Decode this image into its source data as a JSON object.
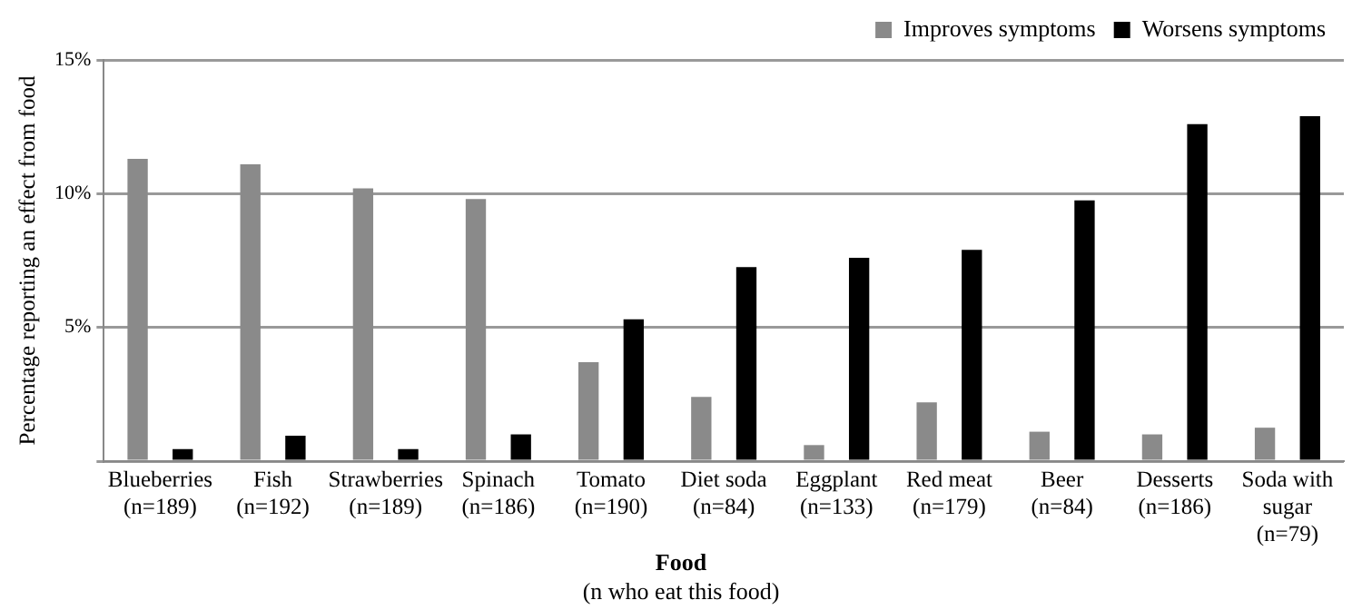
{
  "chart_data": {
    "type": "bar",
    "ylabel": "Percentage reporting an effect from food",
    "xlabel": "Food",
    "annotations": [
      "(n who eat this food)"
    ],
    "categories": [
      "Blueberries\n(n=189)",
      "Fish\n(n=192)",
      "Strawberries\n(n=189)",
      "Spinach\n(n=186)",
      "Tomato\n(n=190)",
      "Diet soda\n(n=84)",
      "Eggplant\n(n=133)",
      "Red meat\n(n=179)",
      "Beer\n(n=84)",
      "Desserts\n(n=186)",
      "Soda with\nsugar\n(n=79)"
    ],
    "series": [
      {
        "name": "Improves symptoms",
        "color": "#8a8a8a",
        "values": [
          11.3,
          11.1,
          10.2,
          9.8,
          3.7,
          2.4,
          0.6,
          2.2,
          1.1,
          1.0,
          1.25
        ]
      },
      {
        "name": "Worsens symptoms",
        "color": "#000000",
        "values": [
          0.45,
          0.95,
          0.45,
          1.0,
          5.3,
          7.25,
          7.6,
          7.9,
          9.75,
          12.6,
          12.9
        ]
      }
    ],
    "ylim": [
      0,
      15
    ],
    "yticks": [
      {
        "value": 0,
        "label": null
      },
      {
        "value": 5,
        "label": "5%"
      },
      {
        "value": 10,
        "label": "10%"
      },
      {
        "value": 15,
        "label": "15%"
      }
    ],
    "grid": "y",
    "legend": "top right"
  }
}
